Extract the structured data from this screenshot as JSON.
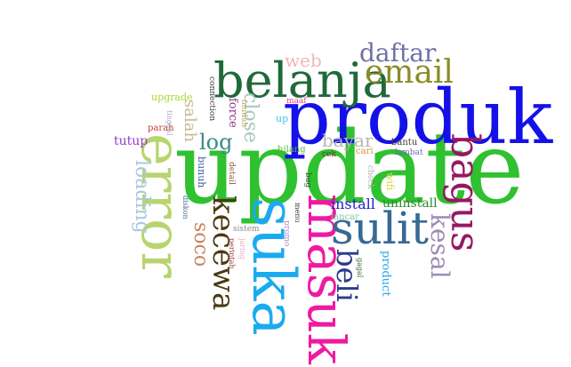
{
  "words": [
    {
      "text": "update",
      "color": "#2fc12f",
      "orientation": "horizontal"
    },
    {
      "text": "produk",
      "color": "#1411e8",
      "orientation": "horizontal"
    },
    {
      "text": "belanja",
      "color": "#20693a",
      "orientation": "horizontal"
    },
    {
      "text": "error",
      "color": "#b7d56d",
      "orientation": "vertical"
    },
    {
      "text": "suka",
      "color": "#1aaaf0",
      "orientation": "vertical"
    },
    {
      "text": "masuk",
      "color": "#ef1aa0",
      "orientation": "vertical"
    },
    {
      "text": "sulit",
      "color": "#376a93",
      "orientation": "horizontal"
    },
    {
      "text": "bagus",
      "color": "#951863",
      "orientation": "vertical"
    },
    {
      "text": "email",
      "color": "#8b8b2a",
      "orientation": "horizontal"
    },
    {
      "text": "daftar",
      "color": "#7370a8",
      "orientation": "horizontal"
    },
    {
      "text": "kecewa",
      "color": "#4a3a12",
      "orientation": "vertical"
    },
    {
      "text": "beli",
      "color": "#293c8c",
      "orientation": "vertical"
    },
    {
      "text": "kesal",
      "color": "#9b8bb5",
      "orientation": "vertical"
    },
    {
      "text": "loading",
      "color": "#a8c8e0",
      "orientation": "vertical"
    },
    {
      "text": "log",
      "color": "#3c8a8a",
      "orientation": "horizontal"
    },
    {
      "text": "close",
      "color": "#a8c8c0",
      "orientation": "vertical"
    },
    {
      "text": "soco",
      "color": "#c8845a",
      "orientation": "vertical"
    },
    {
      "text": "web",
      "color": "#f5b5b5",
      "orientation": "horizontal"
    },
    {
      "text": "bayar",
      "color": "#b5b5b5",
      "orientation": "horizontal"
    },
    {
      "text": "install",
      "color": "#2222c8",
      "orientation": "horizontal"
    },
    {
      "text": "uninstall",
      "color": "#2a8a2a",
      "orientation": "horizontal"
    },
    {
      "text": "salah",
      "color": "#c8b890",
      "orientation": "vertical"
    },
    {
      "text": "tutup",
      "color": "#9a3ad0",
      "orientation": "horizontal"
    },
    {
      "text": "product",
      "color": "#2aa8e8",
      "orientation": "vertical"
    },
    {
      "text": "force",
      "color": "#8a3a8a",
      "orientation": "vertical"
    },
    {
      "text": "bunuh",
      "color": "#3a5aa0",
      "orientation": "vertical"
    },
    {
      "text": "upgrade",
      "color": "#a8d838",
      "orientation": "horizontal"
    },
    {
      "text": "connection",
      "color": "#3a3a3a",
      "orientation": "vertical"
    },
    {
      "text": "mudah",
      "color": "#c8a860",
      "orientation": "vertical"
    },
    {
      "text": "maaf",
      "color": "#e83a9a",
      "orientation": "horizontal"
    },
    {
      "text": "up",
      "color": "#38c8e8",
      "orientation": "horizontal"
    },
    {
      "text": "hilang",
      "color": "#5ab03a",
      "orientation": "horizontal"
    },
    {
      "text": "bantu",
      "color": "#3a3a3a",
      "orientation": "horizontal"
    },
    {
      "text": "lambat",
      "color": "#6a6ab0",
      "orientation": "horizontal"
    },
    {
      "text": "cari",
      "color": "#d89030",
      "orientation": "horizontal"
    },
    {
      "text": "cek",
      "color": "#7a2a3a",
      "orientation": "horizontal"
    },
    {
      "text": "parah",
      "color": "#c83a3a",
      "orientation": "horizontal"
    },
    {
      "text": "lancar",
      "color": "#7ac8a0",
      "orientation": "horizontal"
    },
    {
      "text": "bug",
      "color": "#3a5a3a",
      "orientation": "vertical"
    },
    {
      "text": "check",
      "color": "#b0b0b0",
      "orientation": "vertical"
    },
    {
      "text": "wifi",
      "color": "#d8d838",
      "orientation": "vertical"
    },
    {
      "text": "detail",
      "color": "#8a5a3a",
      "orientation": "vertical"
    },
    {
      "text": "sistem",
      "color": "#8a8a8a",
      "orientation": "horizontal"
    },
    {
      "text": "promo",
      "color": "#b08ad0",
      "orientation": "vertical"
    },
    {
      "text": "menu",
      "color": "#3a3a3a",
      "orientation": "vertical"
    },
    {
      "text": "diskon",
      "color": "#4a6a8a",
      "orientation": "vertical"
    },
    {
      "text": "tinggal",
      "color": "#b0a8c8",
      "orientation": "vertical"
    },
    {
      "text": "jaring",
      "color": "#e8b0c8",
      "orientation": "vertical"
    },
    {
      "text": "perintah",
      "color": "#9a3a3a",
      "orientation": "vertical"
    },
    {
      "text": "gagal",
      "color": "#3a6a3a",
      "orientation": "vertical"
    }
  ]
}
